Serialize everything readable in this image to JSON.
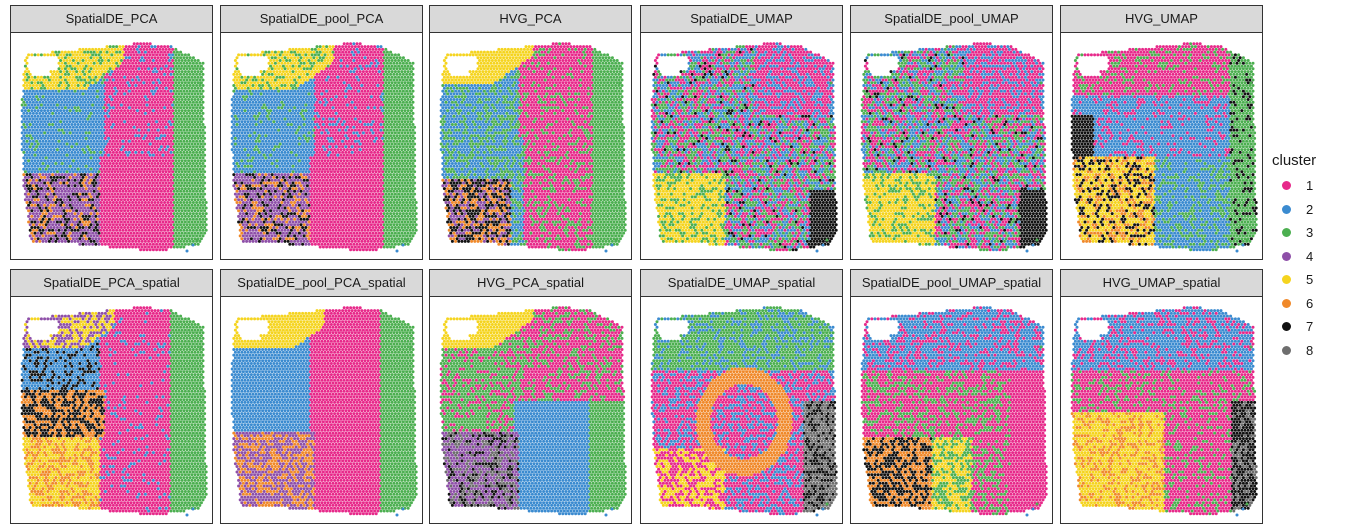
{
  "chart_data": {
    "type": "scatter",
    "description_type": "faceted spatial spot map",
    "panels": [
      {
        "title": "SpatialDE_PCA",
        "row": 0,
        "col": 0
      },
      {
        "title": "SpatialDE_pool_PCA",
        "row": 0,
        "col": 1
      },
      {
        "title": "HVG_PCA",
        "row": 0,
        "col": 2
      },
      {
        "title": "SpatialDE_UMAP",
        "row": 0,
        "col": 3
      },
      {
        "title": "SpatialDE_pool_UMAP",
        "row": 0,
        "col": 4
      },
      {
        "title": "HVG_UMAP",
        "row": 0,
        "col": 5
      },
      {
        "title": "SpatialDE_PCA_spatial",
        "row": 1,
        "col": 0
      },
      {
        "title": "SpatialDE_pool_PCA_spatial",
        "row": 1,
        "col": 1
      },
      {
        "title": "HVG_PCA_spatial",
        "row": 1,
        "col": 2
      },
      {
        "title": "SpatialDE_UMAP_spatial",
        "row": 1,
        "col": 3
      },
      {
        "title": "SpatialDE_pool_UMAP_spatial",
        "row": 1,
        "col": 4
      },
      {
        "title": "HVG_UMAP_spatial",
        "row": 1,
        "col": 5
      }
    ],
    "legend": {
      "title": "cluster",
      "position": "right",
      "entries": [
        {
          "label": "1",
          "color": "#e7298a"
        },
        {
          "label": "2",
          "color": "#3b8bd0"
        },
        {
          "label": "3",
          "color": "#4caf50"
        },
        {
          "label": "4",
          "color": "#8e4fa8"
        },
        {
          "label": "5",
          "color": "#f5d41f"
        },
        {
          "label": "6",
          "color": "#f0892a"
        },
        {
          "label": "7",
          "color": "#111111"
        },
        {
          "label": "8",
          "color": "#6e6e6e"
        }
      ]
    },
    "grid": false
  }
}
